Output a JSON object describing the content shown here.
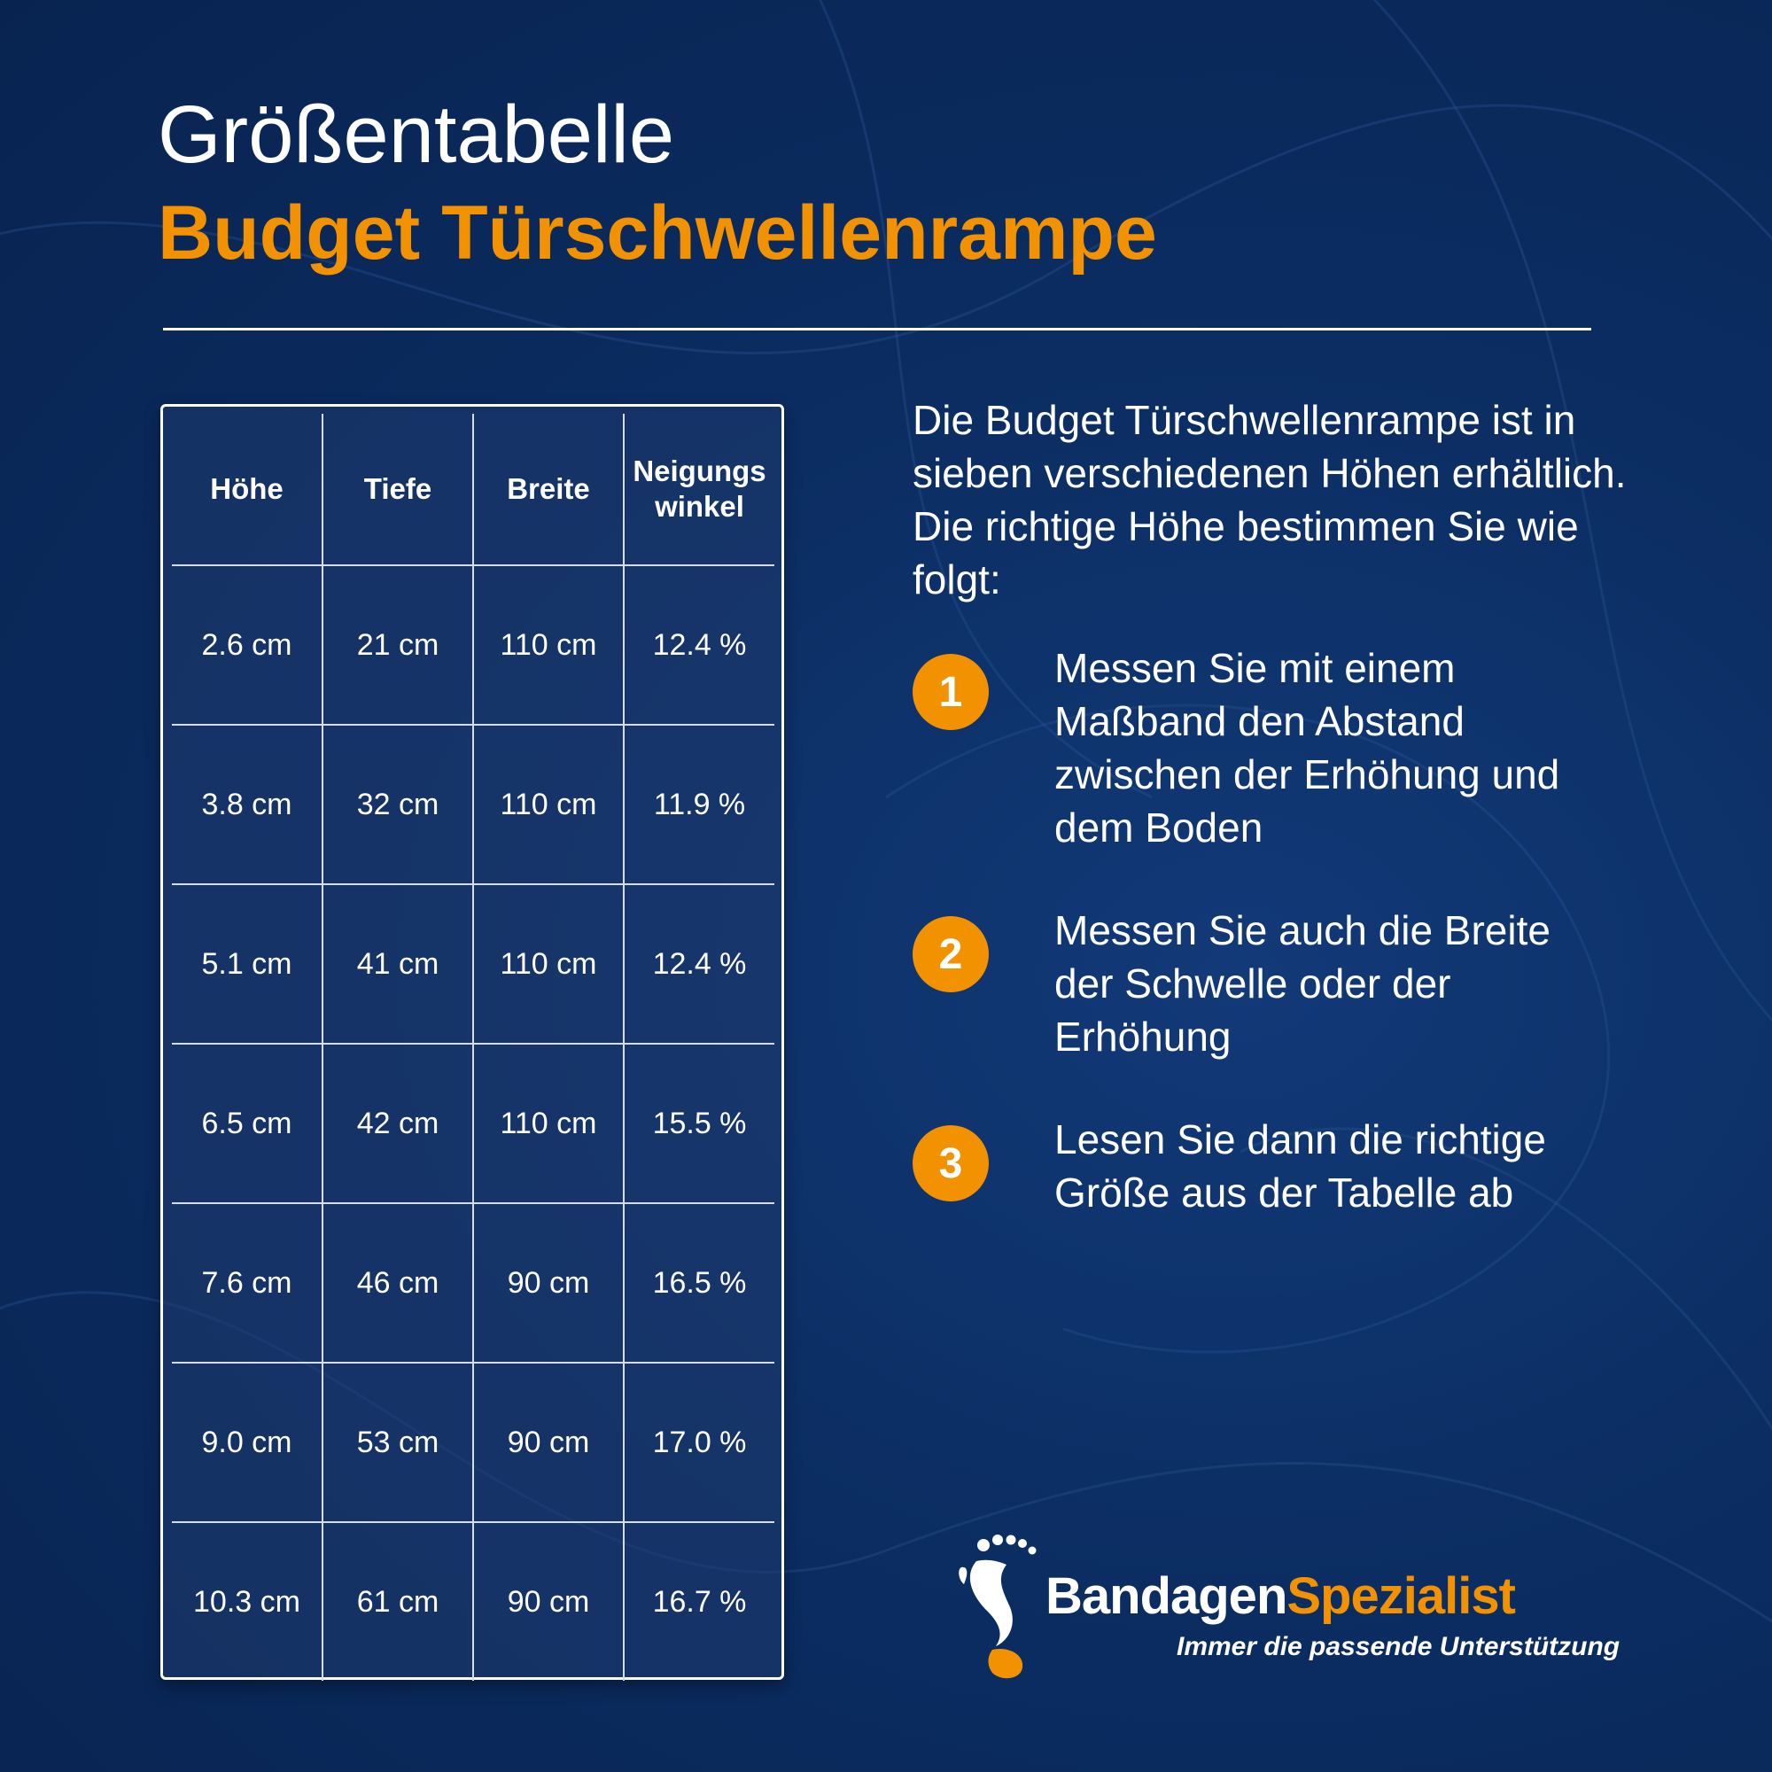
{
  "header": {
    "title_line1": "Größentabelle",
    "title_line2": "Budget Türschwellenrampe"
  },
  "table": {
    "columns": [
      "Höhe",
      "Tiefe",
      "Breite",
      "Neigungs\nwinkel"
    ],
    "rows": [
      [
        "2.6 cm",
        "21 cm",
        "110 cm",
        "12.4 %"
      ],
      [
        "3.8 cm",
        "32 cm",
        "110 cm",
        "11.9 %"
      ],
      [
        "5.1 cm",
        "41 cm",
        "110 cm",
        "12.4 %"
      ],
      [
        "6.5 cm",
        "42 cm",
        "110 cm",
        "15.5 %"
      ],
      [
        "7.6 cm",
        "46 cm",
        "90 cm",
        "16.5 %"
      ],
      [
        "9.0 cm",
        "53 cm",
        "90 cm",
        "17.0 %"
      ],
      [
        "10.3 cm",
        "61 cm",
        "90 cm",
        "16.7 %"
      ]
    ]
  },
  "intro": "Die Budget Türschwellenrampe ist in sieben verschiedenen Höhen erhältlich. Die richtige Höhe bestimmen Sie wie folgt:",
  "steps": [
    {
      "number": "1",
      "text": "Messen Sie mit einem Maßband den Abstand zwischen der Erhöhung und dem Boden"
    },
    {
      "number": "2",
      "text": "Messen Sie auch die Breite der Schwelle oder der Erhöhung"
    },
    {
      "number": "3",
      "text": "Lesen Sie dann die richtige Größe aus der Tabelle ab"
    }
  ],
  "logo": {
    "word_part1": "Bandagen",
    "word_part2": "Spezialist",
    "tagline": "Immer die passende Unterstützung",
    "icon": "footprint-icon"
  },
  "colors": {
    "background": "#0b2d62",
    "accent": "#f39200",
    "text": "#ffffff"
  }
}
